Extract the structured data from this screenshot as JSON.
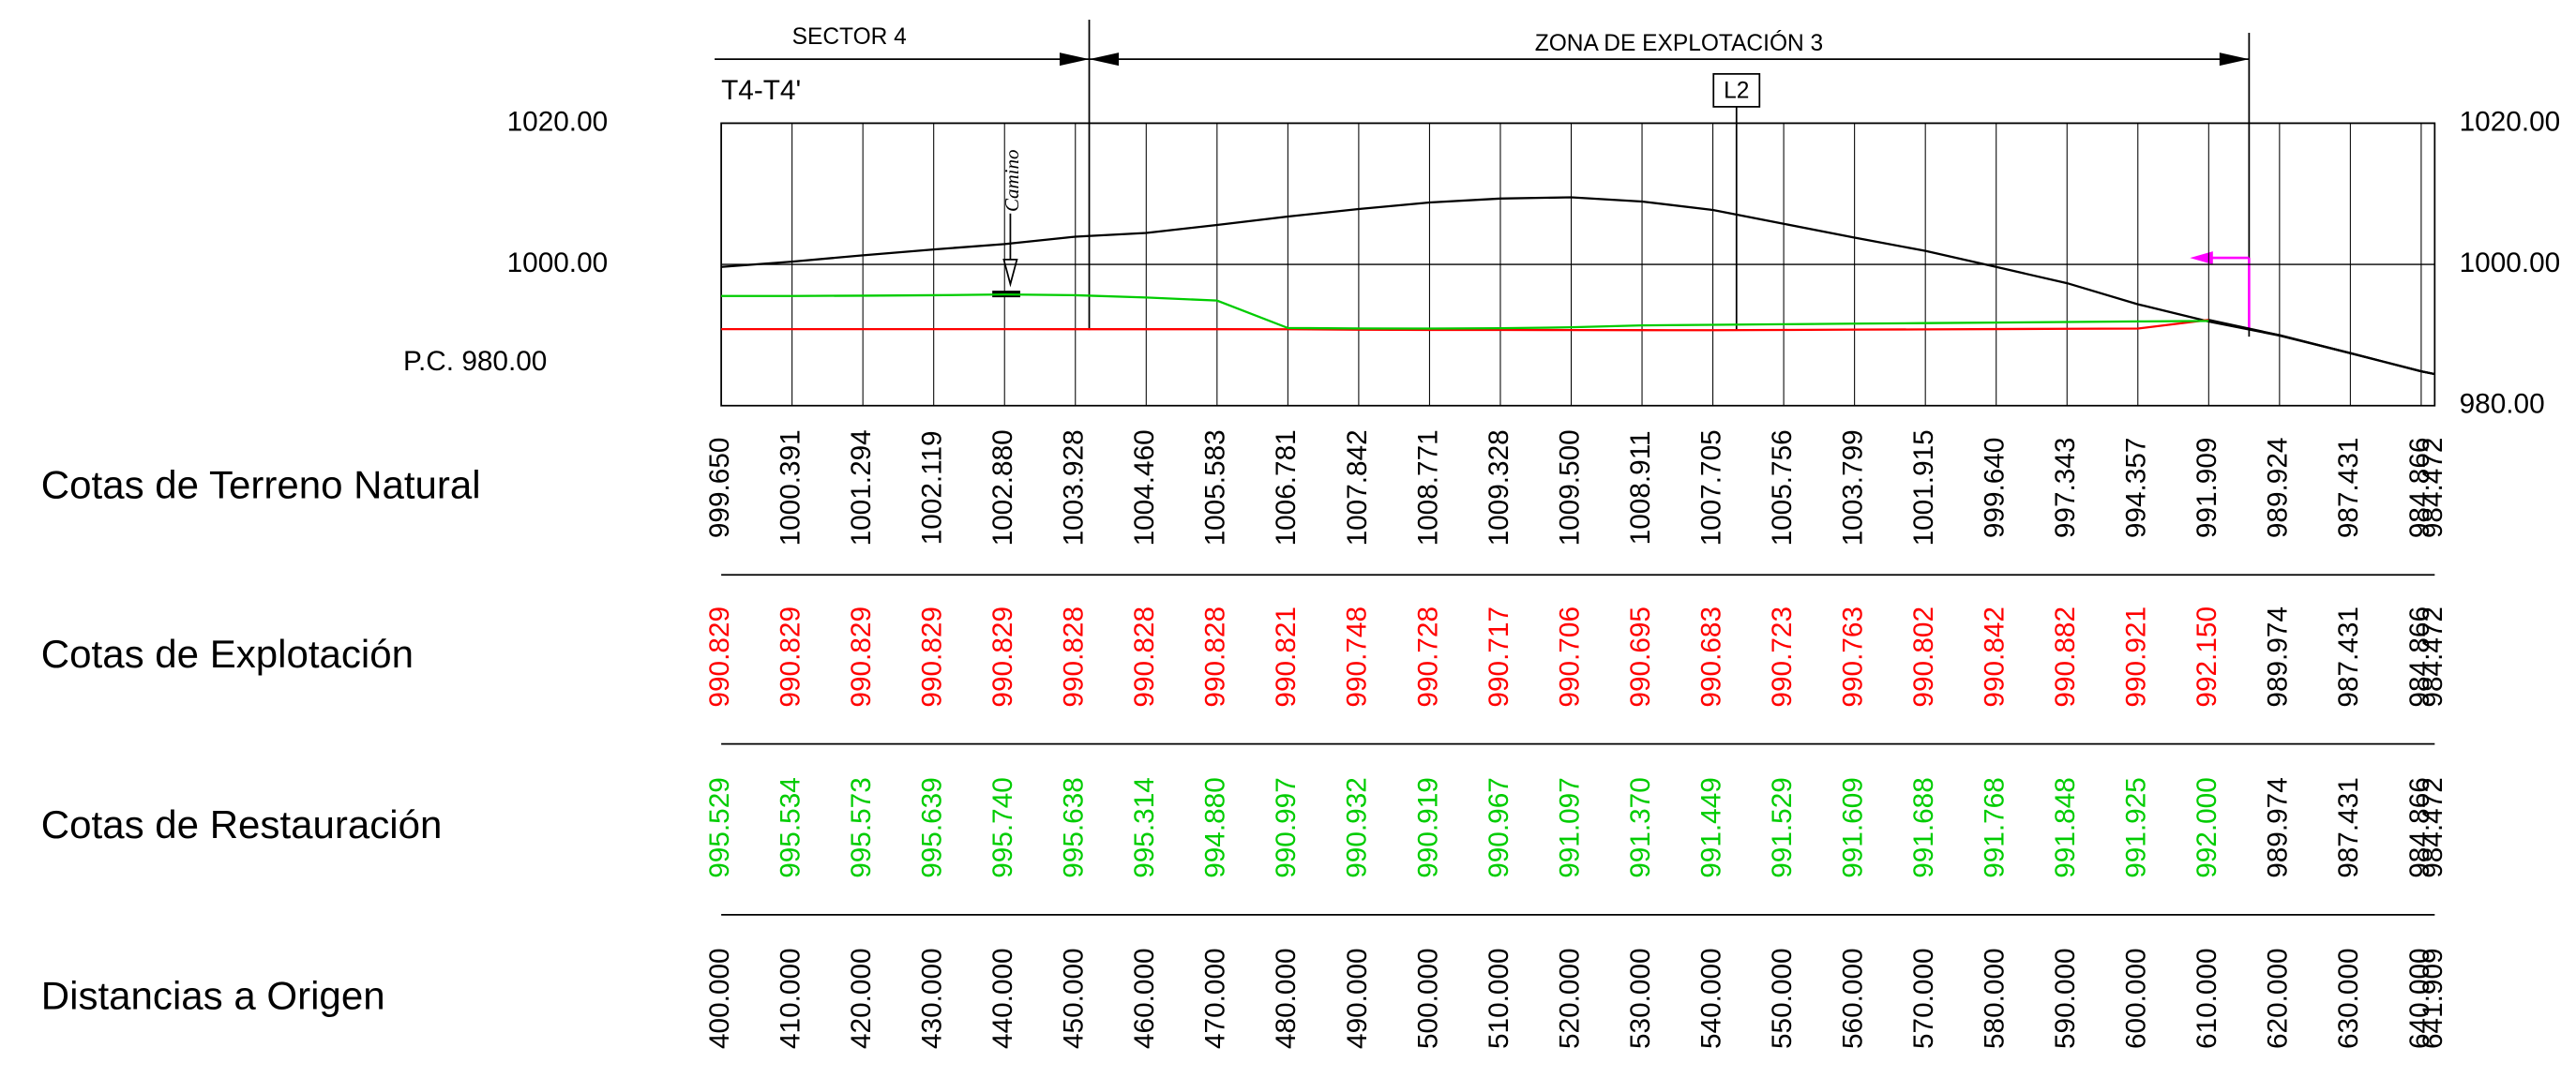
{
  "chart_data": {
    "type": "line",
    "header_left": "SECTOR 4",
    "header_right": "ZONA DE EXPLOTACIÓN 3",
    "section_name": "T4-T4'",
    "marker_label": "L2",
    "path_label": "Camino",
    "datum_label": "P.C. 980.00",
    "x_label": "Distancias a Origen",
    "x": [
      400,
      410,
      420,
      430,
      440,
      450,
      460,
      470,
      480,
      490,
      500,
      510,
      520,
      530,
      540,
      550,
      560,
      570,
      580,
      590,
      600,
      610,
      620,
      630,
      640,
      641.909
    ],
    "x_value_labels": [
      "400.000",
      "410.000",
      "420.000",
      "430.000",
      "440.000",
      "450.000",
      "460.000",
      "470.000",
      "480.000",
      "490.000",
      "500.000",
      "510.000",
      "520.000",
      "530.000",
      "540.000",
      "550.000",
      "560.000",
      "570.000",
      "580.000",
      "590.000",
      "600.000",
      "610.000",
      "620.000",
      "630.000",
      "640.000",
      "641.909"
    ],
    "xlim": [
      400,
      641.909
    ],
    "ylim": [
      980,
      1020
    ],
    "yticks": [
      {
        "value": 1020,
        "label": "1020.00"
      },
      {
        "value": 1000,
        "label": "1000.00"
      },
      {
        "value": 980,
        "label": "980.00"
      }
    ],
    "series": [
      {
        "name": "Cotas de Terreno Natural",
        "color": "#000000",
        "values": [
          999.65,
          1000.391,
          1001.294,
          1002.119,
          1002.88,
          1003.928,
          1004.46,
          1005.583,
          1006.781,
          1007.842,
          1008.771,
          1009.328,
          1009.5,
          1008.911,
          1007.705,
          1005.756,
          1003.799,
          1001.915,
          999.64,
          997.343,
          994.357,
          991.909,
          989.924,
          987.431,
          984.866,
          984.472
        ],
        "value_labels": [
          "999.650",
          "1000.391",
          "1001.294",
          "1002.119",
          "1002.880",
          "1003.928",
          "1004.460",
          "1005.583",
          "1006.781",
          "1007.842",
          "1008.771",
          "1009.328",
          "1009.500",
          "1008.911",
          "1007.705",
          "1005.756",
          "1003.799",
          "1001.915",
          "999.640",
          "997.343",
          "994.357",
          "991.909",
          "989.924",
          "987.431",
          "984.866",
          "984.472"
        ]
      },
      {
        "name": "Cotas de Explotación",
        "color": "#ff0000",
        "colored_to": 610,
        "values": [
          990.829,
          990.829,
          990.829,
          990.829,
          990.829,
          990.828,
          990.828,
          990.828,
          990.821,
          990.748,
          990.728,
          990.717,
          990.706,
          990.695,
          990.683,
          990.723,
          990.763,
          990.802,
          990.842,
          990.882,
          990.921,
          992.15,
          989.974,
          987.431,
          984.866,
          984.472
        ],
        "value_labels": [
          "990.829",
          "990.829",
          "990.829",
          "990.829",
          "990.829",
          "990.828",
          "990.828",
          "990.828",
          "990.821",
          "990.748",
          "990.728",
          "990.717",
          "990.706",
          "990.695",
          "990.683",
          "990.723",
          "990.763",
          "990.802",
          "990.842",
          "990.882",
          "990.921",
          "992.150",
          "989.974",
          "987.431",
          "984.866",
          "984.472"
        ]
      },
      {
        "name": "Cotas de Restauración",
        "color": "#00cc00",
        "colored_to": 610,
        "values": [
          995.529,
          995.534,
          995.573,
          995.639,
          995.74,
          995.638,
          995.314,
          994.88,
          990.997,
          990.932,
          990.919,
          990.967,
          991.097,
          991.37,
          991.449,
          991.529,
          991.609,
          991.688,
          991.768,
          991.848,
          991.925,
          992.0,
          989.974,
          987.431,
          984.866,
          984.472
        ],
        "value_labels": [
          "995.529",
          "995.534",
          "995.573",
          "995.639",
          "995.740",
          "995.638",
          "995.314",
          "994.880",
          "990.997",
          "990.932",
          "990.919",
          "990.967",
          "991.097",
          "991.370",
          "991.449",
          "991.529",
          "991.609",
          "991.688",
          "991.768",
          "991.848",
          "991.925",
          "992.000",
          "989.974",
          "987.431",
          "984.866",
          "984.472"
        ]
      }
    ]
  }
}
